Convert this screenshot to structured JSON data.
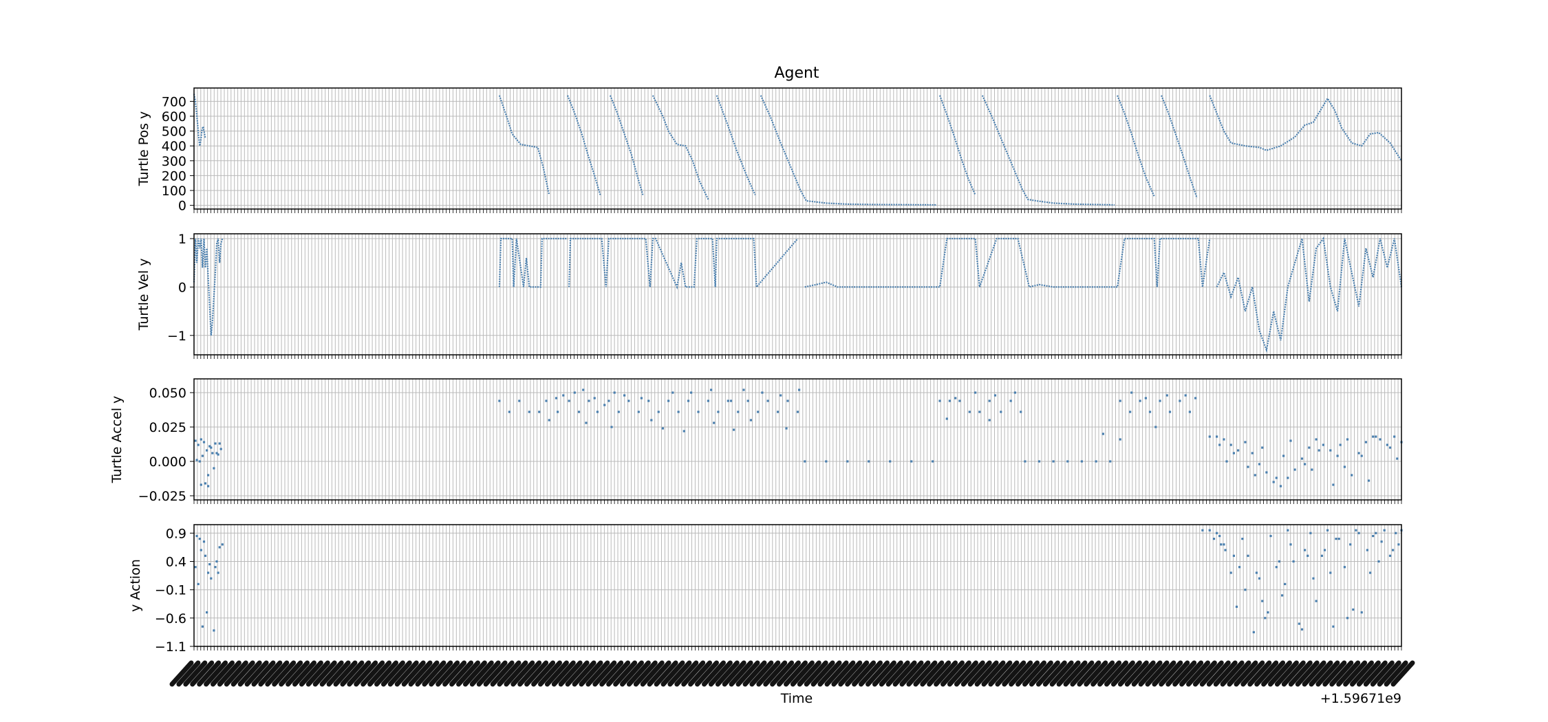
{
  "figure": {
    "title": "Agent",
    "xlabel": "Time",
    "x_offset_label": "+1.59671e9"
  },
  "chart_data": [
    {
      "type": "line",
      "ylabel": "Turtle Pos y",
      "ylim": [
        -25,
        790
      ],
      "yticks": [
        0,
        100,
        200,
        300,
        400,
        500,
        600,
        700
      ],
      "ytick_labels": [
        "0",
        "100",
        "200",
        "300",
        "400",
        "500",
        "600",
        "700"
      ],
      "grid": true,
      "series": [
        {
          "x": [
            0.0,
            0.08,
            0.16,
            0.24,
            0.32,
            0.4,
            0.48,
            0.56,
            0.64,
            0.72,
            0.8
          ],
          "y": [
            750,
            710,
            640,
            560,
            470,
            400,
            440,
            510,
            530,
            490,
            450
          ]
        },
        {
          "x": [
            21.5,
            22.0,
            22.4,
            23.0,
            23.6,
            24.2,
            24.6,
            25.0
          ],
          "y": [
            740,
            600,
            480,
            410,
            400,
            390,
            250,
            70
          ]
        },
        {
          "x": [
            26.3,
            26.8,
            27.3,
            27.7,
            28.2,
            28.6
          ],
          "y": [
            740,
            620,
            480,
            350,
            200,
            70
          ]
        },
        {
          "x": [
            29.3,
            29.8,
            30.3,
            30.8,
            31.2,
            31.6
          ],
          "y": [
            740,
            620,
            480,
            340,
            200,
            70
          ]
        },
        {
          "x": [
            32.3,
            33.0,
            33.4,
            34.0,
            34.6,
            35.1,
            35.6,
            36.2
          ],
          "y": [
            740,
            600,
            500,
            410,
            400,
            300,
            160,
            40
          ]
        },
        {
          "x": [
            36.8,
            37.5,
            38.2,
            38.9,
            39.5
          ],
          "y": [
            740,
            560,
            370,
            200,
            70
          ]
        },
        {
          "x": [
            39.9,
            40.6,
            41.3,
            42.0,
            42.7,
            43.1,
            43.6,
            44.5,
            46.0,
            48.0,
            50.0,
            52.3
          ],
          "y": [
            740,
            590,
            420,
            260,
            100,
            30,
            25,
            15,
            8,
            5,
            4,
            3
          ]
        },
        {
          "x": [
            52.5,
            53.0,
            53.5,
            54.0,
            54.5,
            55.0
          ],
          "y": [
            740,
            610,
            470,
            320,
            180,
            70
          ]
        },
        {
          "x": [
            55.5,
            56.2,
            56.9,
            57.6,
            58.3,
            58.7,
            59.3,
            60.5,
            62.0,
            63.5,
            64.8
          ],
          "y": [
            740,
            590,
            430,
            270,
            110,
            40,
            30,
            15,
            8,
            5,
            3
          ]
        },
        {
          "x": [
            65.0,
            65.5,
            66.0,
            66.5,
            67.0,
            67.6
          ],
          "y": [
            740,
            620,
            480,
            330,
            190,
            60
          ]
        },
        {
          "x": [
            68.1,
            68.6,
            69.1,
            69.6,
            70.1,
            70.6
          ],
          "y": [
            740,
            620,
            480,
            340,
            190,
            50
          ]
        },
        {
          "x": [
            71.5,
            72.0,
            72.5,
            73.0,
            74.0,
            75.0,
            75.5,
            76.5,
            77.5,
            78.2,
            78.8,
            79.3,
            79.8,
            80.3,
            80.8,
            81.5,
            82.2,
            82.8,
            83.4,
            84.2,
            85.0
          ],
          "y": [
            740,
            620,
            500,
            420,
            400,
            390,
            370,
            400,
            460,
            540,
            560,
            640,
            720,
            640,
            520,
            420,
            400,
            480,
            490,
            420,
            300
          ]
        }
      ]
    },
    {
      "type": "line",
      "ylabel": "Turtle Vel y",
      "ylim": [
        -1.4,
        1.1
      ],
      "yticks": [
        -1,
        0,
        1
      ],
      "ytick_labels": [
        "−1",
        "0",
        "1"
      ],
      "grid": true,
      "series": [
        {
          "x": [
            0.0,
            0.1,
            0.2,
            0.3,
            0.4,
            0.5,
            0.6,
            0.7,
            0.8,
            0.9,
            1.0,
            1.1,
            1.2,
            1.3,
            1.4,
            1.5,
            1.6,
            1.7,
            1.8,
            1.9,
            2.0
          ],
          "y": [
            0.1,
            1.0,
            0.5,
            1.0,
            0.8,
            1.0,
            0.4,
            1.0,
            0.4,
            0.8,
            0.2,
            -0.4,
            -1.0,
            -0.7,
            -0.2,
            0.3,
            0.9,
            1.0,
            0.5,
            0.9,
            1.0
          ]
        },
        {
          "x": [
            21.5,
            21.6,
            21.8,
            22.4,
            22.5,
            22.7,
            23.2,
            23.4,
            23.6,
            24.0,
            24.4,
            24.5,
            25.2,
            26.3
          ],
          "y": [
            0.0,
            1.0,
            1.0,
            1.0,
            0.0,
            1.0,
            0.0,
            0.6,
            0.0,
            0.0,
            0.0,
            1.0,
            1.0,
            1.0
          ]
        },
        {
          "x": [
            26.4,
            26.5,
            28.7,
            29.0,
            29.2,
            29.5,
            31.8,
            32.1,
            32.3,
            32.5,
            34.0,
            34.3,
            34.6,
            35.2,
            35.4,
            35.6,
            36.5,
            36.7,
            36.8,
            39.4,
            39.6,
            42.5
          ],
          "y": [
            0.0,
            1.0,
            1.0,
            0.0,
            1.0,
            1.0,
            1.0,
            0.0,
            1.0,
            1.0,
            0.0,
            0.5,
            0.0,
            0.0,
            1.0,
            1.0,
            1.0,
            0.0,
            1.0,
            1.0,
            0.0,
            1.0
          ]
        },
        {
          "x": [
            43.0,
            43.8,
            44.5,
            45.3,
            52.5,
            53.0,
            55.0,
            55.3,
            56.5,
            58.0,
            58.8,
            59.5,
            60.5,
            65.0,
            65.5,
            67.6,
            67.8,
            68.0,
            69.0,
            70.7,
            71.0,
            71.5
          ],
          "y": [
            0.0,
            0.05,
            0.1,
            0.0,
            0.0,
            1.0,
            1.0,
            0.0,
            1.0,
            1.0,
            0.0,
            0.05,
            0.0,
            0.0,
            1.0,
            1.0,
            0.0,
            1.0,
            1.0,
            1.0,
            0.0,
            1.0
          ]
        },
        {
          "x": [
            72.0,
            72.5,
            73.0,
            73.5,
            74.0,
            74.5,
            75.0,
            75.5,
            76.0,
            76.5,
            77.0,
            77.5,
            78.0,
            78.5,
            79.0,
            79.5,
            80.0,
            80.5,
            81.0,
            81.5,
            82.0,
            82.5,
            83.0,
            83.5,
            84.0,
            84.5,
            85.0
          ],
          "y": [
            0.0,
            0.3,
            -0.2,
            0.2,
            -0.5,
            0.0,
            -0.9,
            -1.3,
            -0.5,
            -1.1,
            0.0,
            0.5,
            1.0,
            -0.3,
            0.8,
            1.0,
            0.0,
            -0.5,
            1.0,
            0.3,
            -0.4,
            0.8,
            0.2,
            1.0,
            0.4,
            1.0,
            0.0
          ]
        }
      ]
    },
    {
      "type": "scatter",
      "ylabel": "Turtle Accel y",
      "ylim": [
        -0.028,
        0.06
      ],
      "yticks": [
        -0.025,
        0.0,
        0.025,
        0.05
      ],
      "ytick_labels": [
        "−0.025",
        "0.000",
        "0.025",
        "0.050"
      ],
      "grid": true,
      "series": [
        {
          "x": [
            0.1,
            0.3,
            0.5,
            0.7,
            0.9,
            1.1,
            1.3,
            1.5,
            1.7,
            1.9,
            0.2,
            0.6,
            1.0,
            1.4,
            1.8,
            0.5,
            1.0,
            1.2,
            0.4,
            0.8,
            1.6,
            21.5,
            22.2,
            22.9,
            23.6,
            24.3,
            24.8,
            25.6,
            26.4,
            27.1,
            27.8,
            28.4,
            29.2,
            29.9,
            30.6,
            31.3,
            32.0,
            32.7,
            33.4,
            34.1,
            34.8,
            35.5,
            36.2,
            36.9,
            37.6,
            38.3,
            39.0,
            39.7,
            40.4,
            41.1,
            41.8,
            42.5,
            25.5,
            26.0,
            26.8,
            27.4,
            28.2,
            28.9,
            29.6,
            30.3,
            31.5,
            33.7,
            35.0,
            36.4,
            37.8,
            38.7,
            40.0,
            41.3,
            42.6,
            25.0,
            27.6,
            29.4,
            32.2,
            33.0,
            34.5,
            36.6,
            38.0,
            39.2,
            41.7,
            43.0,
            44.5,
            46.0,
            47.5,
            49.0,
            50.5,
            52.0,
            52.5,
            53.2,
            53.9,
            54.6,
            55.3,
            56.0,
            56.8,
            57.5,
            58.2,
            53.6,
            55.0,
            56.4,
            57.8,
            53.0,
            56.0,
            58.5,
            59.5,
            60.5,
            61.5,
            62.5,
            63.5,
            64.5,
            64.0,
            65.2,
            65.2,
            65.9,
            66.6,
            67.3,
            68.0,
            68.7,
            69.4,
            70.1,
            66.0,
            67.0,
            68.5,
            69.8,
            70.5,
            67.7,
            71.5,
            72.0,
            72.5,
            73.0,
            73.5,
            74.0,
            74.5,
            75.0,
            75.5,
            76.0,
            76.5,
            77.0,
            77.5,
            78.0,
            78.5,
            79.0,
            79.5,
            80.0,
            80.5,
            81.0,
            81.5,
            82.0,
            82.5,
            83.0,
            83.5,
            84.0,
            84.5,
            85.0,
            72.2,
            73.2,
            74.2,
            75.2,
            76.2,
            77.2,
            78.2,
            79.2,
            80.2,
            81.2,
            82.2,
            83.2,
            84.2,
            72.7,
            74.7,
            76.7,
            78.7,
            80.7,
            82.7,
            84.7
          ],
          "y": [
            0.015,
            0.012,
            0.016,
            0.014,
            0.008,
            0.011,
            0.006,
            0.013,
            0.005,
            0.009,
            0.001,
            0.004,
            -0.01,
            -0.005,
            0.013,
            -0.017,
            -0.018,
            0.01,
            0.0,
            -0.016,
            0.006,
            0.044,
            0.036,
            0.044,
            0.036,
            0.036,
            0.044,
            0.036,
            0.044,
            0.036,
            0.044,
            0.036,
            0.044,
            0.036,
            0.044,
            0.036,
            0.044,
            0.036,
            0.044,
            0.036,
            0.044,
            0.036,
            0.044,
            0.036,
            0.044,
            0.036,
            0.044,
            0.036,
            0.044,
            0.036,
            0.044,
            0.036,
            0.046,
            0.048,
            0.05,
            0.052,
            0.046,
            0.041,
            0.05,
            0.048,
            0.046,
            0.05,
            0.05,
            0.052,
            0.044,
            0.052,
            0.05,
            0.048,
            0.052,
            0.03,
            0.028,
            0.025,
            0.03,
            0.024,
            0.022,
            0.028,
            0.023,
            0.03,
            0.024,
            0.0,
            0.0,
            0.0,
            0.0,
            0.0,
            0.0,
            0.0,
            0.044,
            0.044,
            0.044,
            0.036,
            0.036,
            0.044,
            0.036,
            0.044,
            0.036,
            0.046,
            0.05,
            0.048,
            0.05,
            0.031,
            0.03,
            0.0,
            0.0,
            0.0,
            0.0,
            0.0,
            0.0,
            0.0,
            0.02,
            0.016,
            0.044,
            0.036,
            0.044,
            0.036,
            0.044,
            0.036,
            0.044,
            0.036,
            0.05,
            0.046,
            0.048,
            0.048,
            0.046,
            0.025,
            0.018,
            0.018,
            0.016,
            0.012,
            0.008,
            0.014,
            0.006,
            -0.002,
            -0.008,
            -0.015,
            -0.018,
            -0.012,
            -0.006,
            0.002,
            0.01,
            0.016,
            0.012,
            0.008,
            0.004,
            -0.004,
            -0.01,
            0.006,
            0.014,
            0.018,
            0.016,
            0.012,
            0.018,
            0.014,
            0.012,
            0.006,
            -0.004,
            0.01,
            -0.012,
            0.015,
            -0.002,
            0.008,
            -0.017,
            0.016,
            0.004,
            0.018,
            0.01,
            0.0,
            -0.01,
            0.004,
            -0.006,
            0.012,
            -0.014,
            0.002
          ]
        }
      ]
    },
    {
      "type": "scatter",
      "ylabel": "y Action",
      "ylim": [
        -1.1,
        1.05
      ],
      "yticks": [
        -1.1,
        -0.6,
        -0.1,
        0.4,
        0.9
      ],
      "ytick_labels": [
        "−1.1",
        "−0.6",
        "−0.1",
        "0.4",
        "0.9"
      ],
      "grid": true,
      "series": [
        {
          "x": [
            0.1,
            0.2,
            0.4,
            0.6,
            0.8,
            1.0,
            1.2,
            1.4,
            1.6,
            1.8,
            2.0,
            0.3,
            0.9,
            1.5,
            0.5,
            0.7,
            1.1,
            1.7,
            71.0,
            71.5,
            72.0,
            72.3,
            72.6,
            73.0,
            73.4,
            73.8,
            74.2,
            74.6,
            75.0,
            75.4,
            75.8,
            76.2,
            76.6,
            77.0,
            77.4,
            77.8,
            78.2,
            78.6,
            79.0,
            79.4,
            79.8,
            80.2,
            80.6,
            81.0,
            81.4,
            81.8,
            82.2,
            82.6,
            83.0,
            83.4,
            83.8,
            84.2,
            84.6,
            85.0,
            71.8,
            72.5,
            73.2,
            74.0,
            74.8,
            75.6,
            76.4,
            77.2,
            78.0,
            78.8,
            79.6,
            80.4,
            81.2,
            82.0,
            82.8,
            83.6,
            84.4,
            72.2,
            73.6,
            75.2,
            76.8,
            78.4,
            80.0,
            81.6,
            83.2,
            84.8
          ],
          "y": [
            0.3,
            0.85,
            0.8,
            -0.75,
            0.5,
            0.2,
            0.1,
            -0.82,
            0.4,
            0.65,
            0.7,
            0.0,
            -0.5,
            0.3,
            0.6,
            0.75,
            0.35,
            0.2,
            0.95,
            0.95,
            0.9,
            0.7,
            0.6,
            0.2,
            -0.4,
            0.8,
            0.5,
            -0.85,
            0.1,
            -0.6,
            0.85,
            0.3,
            -0.2,
            0.95,
            0.4,
            -0.7,
            0.6,
            0.9,
            -0.3,
            0.5,
            0.95,
            -0.75,
            0.8,
            0.3,
            0.7,
            0.95,
            -0.5,
            0.6,
            0.85,
            0.4,
            0.95,
            0.5,
            0.9,
            0.95,
            0.8,
            0.7,
            0.5,
            -0.1,
            0.2,
            -0.5,
            0.4,
            0.7,
            -0.8,
            0.1,
            0.6,
            0.8,
            -0.6,
            0.9,
            0.2,
            0.75,
            0.6,
            0.85,
            0.3,
            -0.3,
            0.0,
            0.5,
            0.2,
            -0.45,
            0.9,
            0.7
          ]
        }
      ]
    }
  ]
}
